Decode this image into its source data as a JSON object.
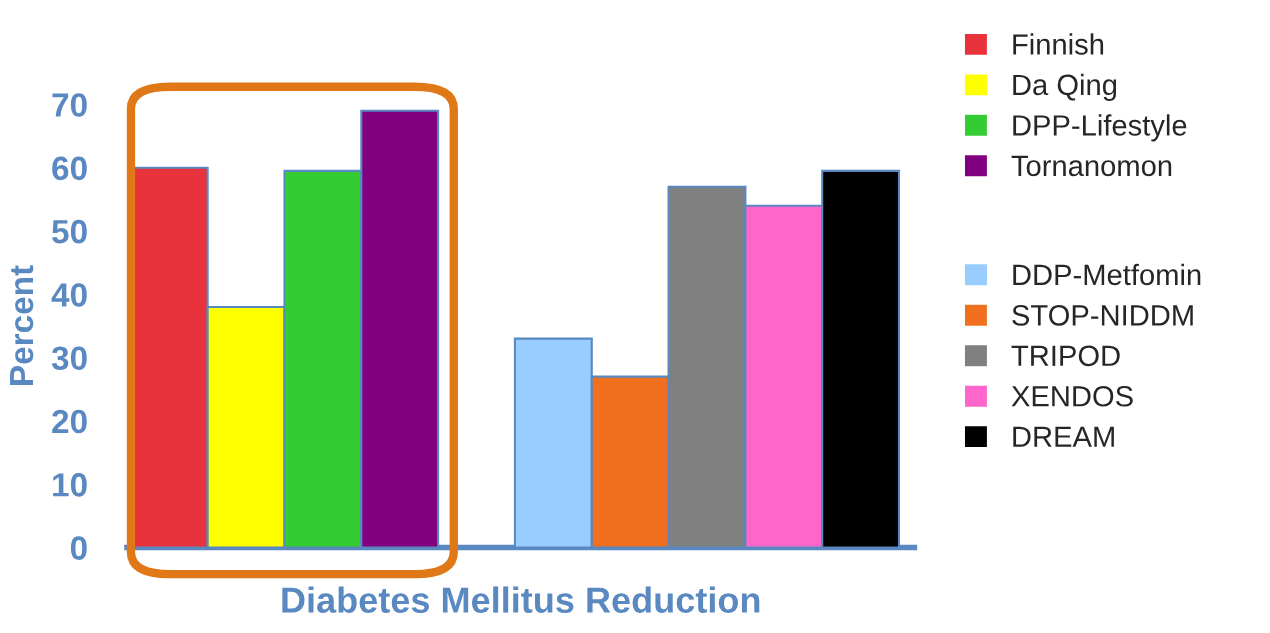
{
  "chart_data": {
    "type": "bar",
    "xlabel": "Diabetes Mellitus Reduction",
    "ylabel": "Percent",
    "categories": [
      null,
      null,
      null,
      null,
      null,
      null,
      null,
      null,
      null,
      null
    ],
    "series": [
      {
        "name": "Finnish",
        "color": "#e8323c",
        "values": [
          60,
          null,
          null,
          null,
          null,
          null,
          null,
          null,
          null,
          null
        ]
      },
      {
        "name": "Da Qing",
        "color": "#ffff00",
        "values": [
          null,
          38,
          null,
          null,
          null,
          null,
          null,
          null,
          null,
          null
        ]
      },
      {
        "name": "DPP-Lifestyle",
        "color": "#33cc33",
        "values": [
          null,
          null,
          59.5,
          null,
          null,
          null,
          null,
          null,
          null,
          null
        ]
      },
      {
        "name": "Tornanomon",
        "color": "#800080",
        "values": [
          null,
          null,
          null,
          69,
          null,
          null,
          null,
          null,
          null,
          null
        ]
      },
      {
        "name": "DDP-Metfomin",
        "color": "#99ccff",
        "values": [
          null,
          null,
          null,
          null,
          null,
          33,
          null,
          null,
          null,
          null
        ]
      },
      {
        "name": "STOP-NIDDM",
        "color": "#f07020",
        "values": [
          null,
          null,
          null,
          null,
          null,
          null,
          27,
          null,
          null,
          null
        ]
      },
      {
        "name": "TRIPOD",
        "color": "#808080",
        "values": [
          null,
          null,
          null,
          null,
          null,
          null,
          null,
          57,
          null,
          null
        ]
      },
      {
        "name": "XENDOS",
        "color": "#ff66cc",
        "values": [
          null,
          null,
          null,
          null,
          null,
          null,
          null,
          null,
          54,
          null
        ]
      },
      {
        "name": "DREAM",
        "color": "#000000",
        "values": [
          null,
          null,
          null,
          null,
          null,
          null,
          null,
          null,
          null,
          59.5
        ]
      }
    ],
    "ylim": [
      0,
      70
    ],
    "yticks": [
      0,
      10,
      20,
      30,
      40,
      50,
      60,
      70
    ],
    "grid": false,
    "legend": "right",
    "tick_labels": "y"
  }
}
